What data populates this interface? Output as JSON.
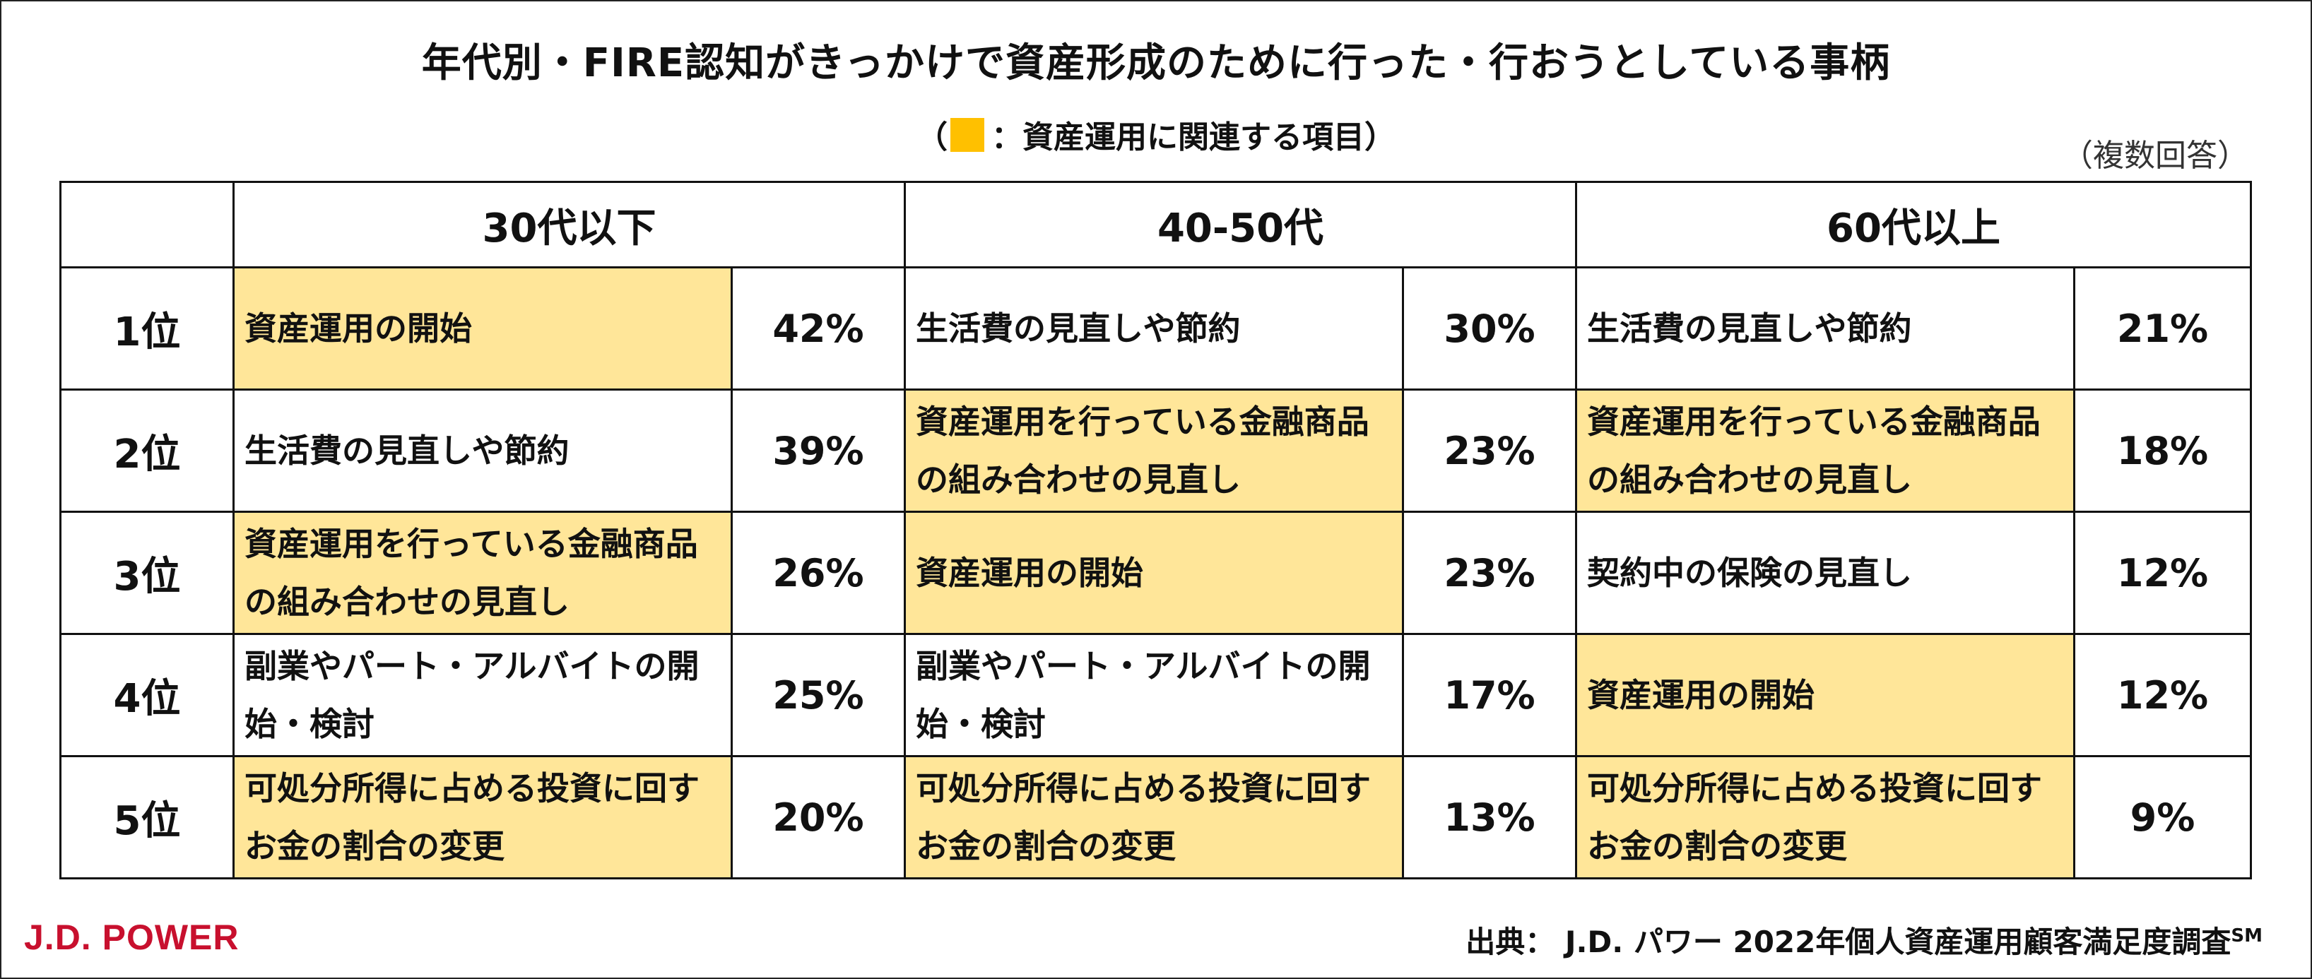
{
  "title": "年代別・FIRE認知がきっかけで資産形成のために行った・行おうとしている事柄",
  "subtitle": {
    "open": "（",
    "legend_text": "：資産運用に関連する項目）",
    "highlight_color": "#FFE699",
    "swatch_color": "#FFC000"
  },
  "note": "（複数回答）",
  "table": {
    "headers": [
      "",
      "30代以下",
      "40-50代",
      "60代以上"
    ],
    "rows": [
      {
        "rank": "1位",
        "cells": [
          {
            "item": "資産運用の開始",
            "pct": "42%",
            "highlight": true
          },
          {
            "item": "生活費の見直しや節約",
            "pct": "30%",
            "highlight": false
          },
          {
            "item": "生活費の見直しや節約",
            "pct": "21%",
            "highlight": false
          }
        ]
      },
      {
        "rank": "2位",
        "cells": [
          {
            "item": "生活費の見直しや節約",
            "pct": "39%",
            "highlight": false
          },
          {
            "item": "資産運用を行っている金融商品の組み合わせの見直し",
            "pct": "23%",
            "highlight": true
          },
          {
            "item": "資産運用を行っている金融商品の組み合わせの見直し",
            "pct": "18%",
            "highlight": true
          }
        ]
      },
      {
        "rank": "3位",
        "cells": [
          {
            "item": "資産運用を行っている金融商品の組み合わせの見直し",
            "pct": "26%",
            "highlight": true
          },
          {
            "item": "資産運用の開始",
            "pct": "23%",
            "highlight": true
          },
          {
            "item": "契約中の保険の見直し",
            "pct": "12%",
            "highlight": false
          }
        ]
      },
      {
        "rank": "4位",
        "cells": [
          {
            "item": "副業やパート・アルバイトの開始・検討",
            "pct": "25%",
            "highlight": false
          },
          {
            "item": "副業やパート・アルバイトの開始・検討",
            "pct": "17%",
            "highlight": false
          },
          {
            "item": "資産運用の開始",
            "pct": "12%",
            "highlight": true
          }
        ]
      },
      {
        "rank": "5位",
        "cells": [
          {
            "item": "可処分所得に占める投資に回すお金の割合の変更",
            "pct": "20%",
            "highlight": true
          },
          {
            "item": "可処分所得に占める投資に回すお金の割合の変更",
            "pct": "13%",
            "highlight": true
          },
          {
            "item": "可処分所得に占める投資に回すお金の割合の変更",
            "pct": "9%",
            "highlight": true
          }
        ]
      }
    ]
  },
  "footer": {
    "logo": "J.D. POWER",
    "logo_color": "#C8102E",
    "source": "出典： J.D. パワー 2022年個人資産運用顧客満足度調査",
    "source_mark": "SM"
  }
}
